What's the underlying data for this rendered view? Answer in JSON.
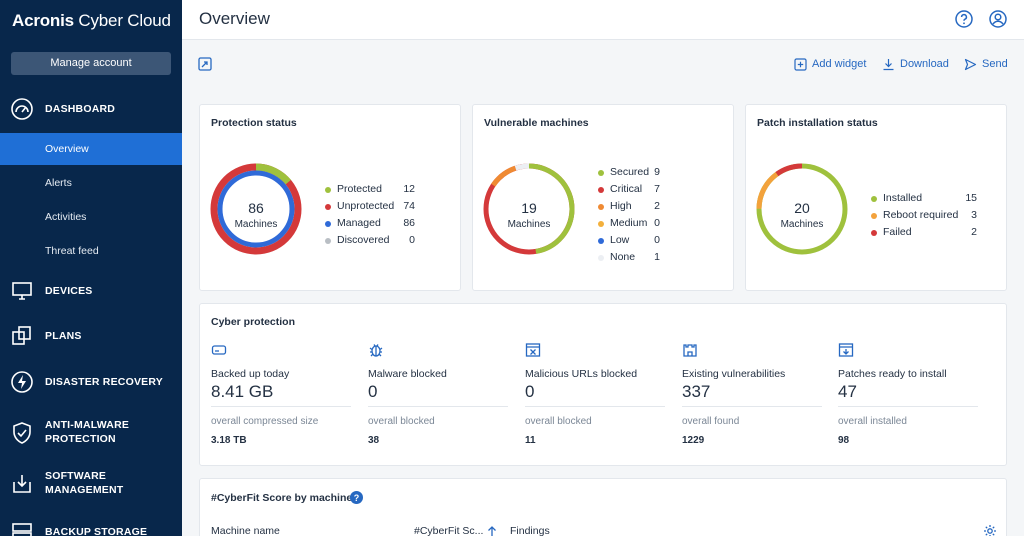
{
  "sidebar": {
    "brand_bold": "Acronis",
    "brand_rest": " Cyber Cloud",
    "manage_account": "Manage account",
    "sections": {
      "dashboard": "DASHBOARD",
      "devices": "DEVICES",
      "plans": "PLANS",
      "disaster_recovery": "DISASTER RECOVERY",
      "anti_malware": "ANTI-MALWARE PROTECTION",
      "anti_malware_l1": "ANTI-MALWARE",
      "anti_malware_l2": "PROTECTION",
      "software_l1": "SOFTWARE",
      "software_l2": "MANAGEMENT",
      "backup_storage": "BACKUP STORAGE"
    },
    "sub_items": {
      "overview": "Overview",
      "alerts": "Alerts",
      "activities": "Activities",
      "threat_feed": "Threat feed"
    }
  },
  "header": {
    "title": "Overview",
    "help_icon": "help-icon",
    "account_icon": "account-icon"
  },
  "toolbar": {
    "add_widget": "Add widget",
    "download": "Download",
    "send": "Send"
  },
  "protection_status": {
    "title": "Protection status",
    "center_value": "86",
    "center_label": "Machines",
    "legend": [
      {
        "label": "Protected",
        "value": "12",
        "color": "#9fc13d"
      },
      {
        "label": "Unprotected",
        "value": "74",
        "color": "#d4393a"
      },
      {
        "label": "Managed",
        "value": "86",
        "color": "#2f6ad8"
      },
      {
        "label": "Discovered",
        "value": "0",
        "color": "#b9bec4"
      }
    ]
  },
  "vulnerable_machines": {
    "title": "Vulnerable machines",
    "center_value": "19",
    "center_label": "Machines",
    "legend": [
      {
        "label": "Secured",
        "value": "9",
        "color": "#9fc13d"
      },
      {
        "label": "Critical",
        "value": "7",
        "color": "#d4393a"
      },
      {
        "label": "High",
        "value": "2",
        "color": "#ef8a33"
      },
      {
        "label": "Medium",
        "value": "0",
        "color": "#f3b03c"
      },
      {
        "label": "Low",
        "value": "0",
        "color": "#2f6ad8"
      },
      {
        "label": "None",
        "value": "1",
        "color": "#eceff3"
      }
    ]
  },
  "patch_status": {
    "title": "Patch installation status",
    "center_value": "20",
    "center_label": "Machines",
    "legend": [
      {
        "label": "Installed",
        "value": "15",
        "color": "#9fc13d"
      },
      {
        "label": "Reboot required",
        "value": "3",
        "color": "#f3a23c"
      },
      {
        "label": "Failed",
        "value": "2",
        "color": "#d4393a"
      }
    ]
  },
  "cyber_protection": {
    "title": "Cyber protection",
    "metrics": [
      {
        "icon": "backup-drive-icon",
        "label": "Backed up today",
        "value": "8.41 GB",
        "sub": "overall compressed size",
        "subval": "3.18 TB"
      },
      {
        "icon": "malware-bug-icon",
        "label": "Malware blocked",
        "value": "0",
        "sub": "overall blocked",
        "subval": "38"
      },
      {
        "icon": "blocked-url-icon",
        "label": "Malicious URLs blocked",
        "value": "0",
        "sub": "overall blocked",
        "subval": "11"
      },
      {
        "icon": "vulnerability-castle-icon",
        "label": "Existing vulnerabilities",
        "value": "337",
        "sub": "overall found",
        "subval": "1229"
      },
      {
        "icon": "patch-download-icon",
        "label": "Patches ready to install",
        "value": "47",
        "sub": "overall installed",
        "subval": "98"
      }
    ]
  },
  "cyberfit": {
    "title": "#CyberFit Score by machine",
    "col_machine": "Machine name",
    "col_score": "#CyberFit Sc...",
    "col_findings": "Findings"
  }
}
